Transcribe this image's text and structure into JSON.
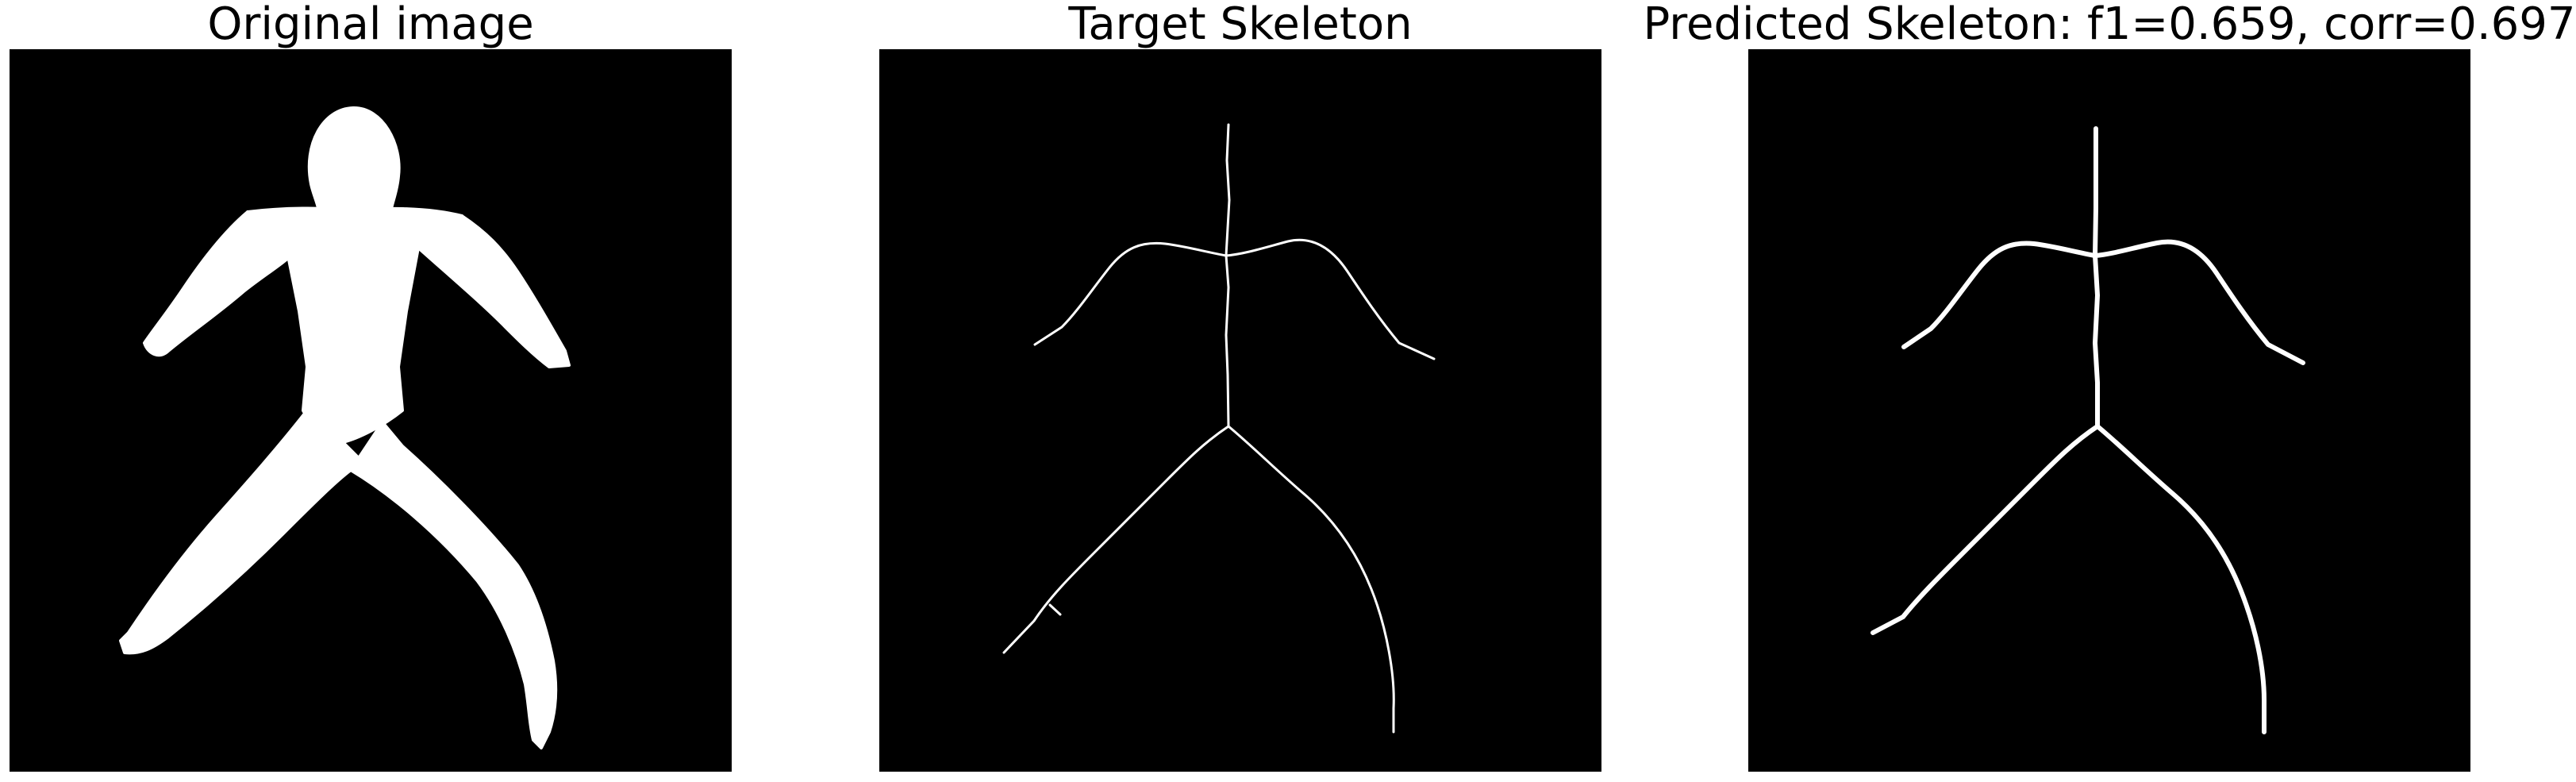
{
  "panels": [
    {
      "title": "Original image"
    },
    {
      "title": "Target Skeleton"
    },
    {
      "title": "Predicted Skeleton: f1=0.659, corr=0.697"
    }
  ],
  "colors": {
    "background": "#000000",
    "foreground": "#ffffff",
    "page": "#ffffff"
  }
}
